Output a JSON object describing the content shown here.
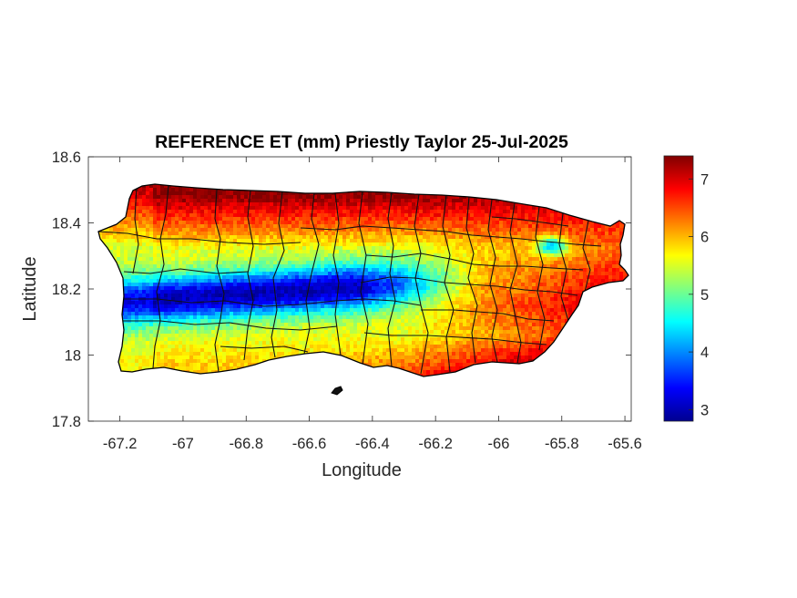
{
  "chart_data": {
    "type": "heatmap",
    "title": "REFERENCE ET (mm) Priestly Taylor 25-Jul-2025",
    "xlabel": "Longitude",
    "ylabel": "Latitude",
    "xlim": [
      -67.3,
      -65.58
    ],
    "ylim": [
      17.8,
      18.6
    ],
    "x_ticks": [
      -67.2,
      -67,
      -66.8,
      -66.6,
      -66.4,
      -66.2,
      -66,
      -65.8,
      -65.6
    ],
    "x_tick_labels": [
      "-67.2",
      "-67",
      "-66.8",
      "-66.6",
      "-66.4",
      "-66.2",
      "-66",
      "-65.8",
      "-65.6"
    ],
    "y_ticks": [
      17.8,
      18,
      18.2,
      18.4,
      18.6
    ],
    "y_tick_labels": [
      "17.8",
      "18",
      "18.2",
      "18.4",
      "18.6"
    ],
    "colorbar": {
      "colormap": "jet",
      "range": [
        2.8,
        7.4
      ],
      "ticks": [
        3,
        4,
        5,
        6,
        7
      ],
      "tick_labels": [
        "3",
        "4",
        "5",
        "6",
        "7"
      ],
      "low_color": "#00008f",
      "high_color": "#800000"
    },
    "grid": false,
    "outline_color": "#000000",
    "boundaries": "municipality outlines (black)",
    "field_description": {
      "north_coast": 7.0,
      "northeast": 7.2,
      "central_band_lat_18_22": 3.8,
      "southwest_interior": 3.2,
      "south_coast": 5.6,
      "southeast": 6.8,
      "west_coast": 5.0
    }
  }
}
